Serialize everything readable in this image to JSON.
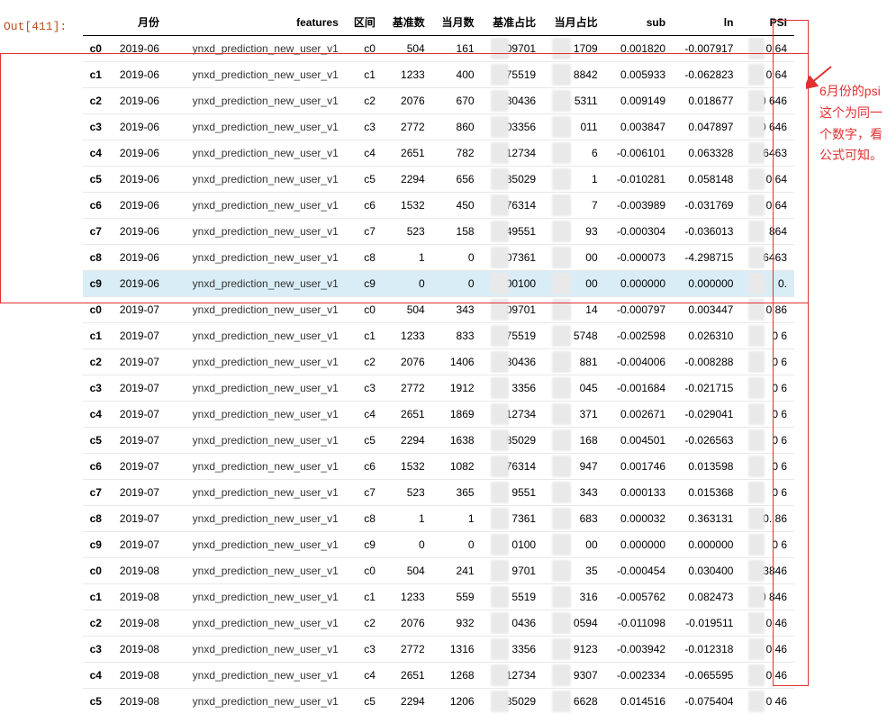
{
  "out_label": "Out[411]:",
  "headers": {
    "idx": "",
    "month": "月份",
    "features": "features",
    "bucket": "区间",
    "base_cnt": "基准数",
    "cur_cnt": "当月数",
    "base_pct": "基准占比",
    "cur_pct": "当月占比",
    "sub": "sub",
    "ln": "ln",
    "psi": "PSI"
  },
  "annotation": "6月份的psi这个为同一个数字，看公式可知。",
  "rows": [
    {
      "idx": "c0",
      "month": "2019-06",
      "feat": "ynxd_prediction_new_user_v1",
      "bucket": "c0",
      "base": "504",
      "cur": "161",
      "basep": "09701",
      "curp": "1709",
      "sub": "0.001820",
      "ln": "-0.007917",
      "psi": "0  64 "
    },
    {
      "idx": "c1",
      "month": "2019-06",
      "feat": "ynxd_prediction_new_user_v1",
      "bucket": "c1",
      "base": "1233",
      "cur": "400",
      "basep": "75519",
      "curp": "8842",
      "sub": "0.005933",
      "ln": "-0.062823",
      "psi": "0  64 "
    },
    {
      "idx": "c2",
      "month": "2019-06",
      "feat": "ynxd_prediction_new_user_v1",
      "bucket": "c2",
      "base": "2076",
      "cur": "670",
      "basep": "30436",
      "curp": "5311",
      "sub": "0.009149",
      "ln": "0.018677",
      "psi": "0  646"
    },
    {
      "idx": "c3",
      "month": "2019-06",
      "feat": "ynxd_prediction_new_user_v1",
      "bucket": "c3",
      "base": "2772",
      "cur": "860",
      "basep": "03356",
      "curp": "011",
      "sub": "0.003847",
      "ln": "0.047897",
      "psi": "0  646"
    },
    {
      "idx": "c4",
      "month": "2019-06",
      "feat": "ynxd_prediction_new_user_v1",
      "bucket": "c4",
      "base": "2651",
      "cur": "782",
      "basep": "12734",
      "curp": "6",
      "sub": "-0.006101",
      "ln": "0.063328",
      "psi": "0  6463"
    },
    {
      "idx": "c5",
      "month": "2019-06",
      "feat": "ynxd_prediction_new_user_v1",
      "bucket": "c5",
      "base": "2294",
      "cur": "656",
      "basep": "85029",
      "curp": "1",
      "sub": "-0.010281",
      "ln": "0.058148",
      "psi": "0  64"
    },
    {
      "idx": "c6",
      "month": "2019-06",
      "feat": "ynxd_prediction_new_user_v1",
      "bucket": "c6",
      "base": "1532",
      "cur": "450",
      "basep": "76314",
      "curp": "7",
      "sub": "-0.003989",
      "ln": "-0.031769",
      "psi": "0  64"
    },
    {
      "idx": "c7",
      "month": "2019-06",
      "feat": "ynxd_prediction_new_user_v1",
      "bucket": "c7",
      "base": "523",
      "cur": "158",
      "basep": "49551",
      "curp": "93",
      "sub": "-0.000304",
      "ln": "-0.036013",
      "psi": "864"
    },
    {
      "idx": "c8",
      "month": "2019-06",
      "feat": "ynxd_prediction_new_user_v1",
      "bucket": "c8",
      "base": "1",
      "cur": "0",
      "basep": "07361",
      "curp": "00",
      "sub": "-0.000073",
      "ln": "-4.298715",
      "psi": "0  6463"
    },
    {
      "idx": "c9",
      "month": "2019-06",
      "feat": "ynxd_prediction_new_user_v1",
      "bucket": "c9",
      "base": "0",
      "cur": "0",
      "basep": "00100",
      "curp": "00",
      "sub": "0.000000",
      "ln": "0.000000",
      "psi": "0.   ",
      "hl": true
    },
    {
      "idx": "c0",
      "month": "2019-07",
      "feat": "ynxd_prediction_new_user_v1",
      "bucket": "c0",
      "base": "504",
      "cur": "343",
      "basep": "09701",
      "curp": "14",
      "sub": "-0.000797",
      "ln": "0.003447",
      "psi": "0  86"
    },
    {
      "idx": "c1",
      "month": "2019-07",
      "feat": "ynxd_prediction_new_user_v1",
      "bucket": "c1",
      "base": "1233",
      "cur": "833",
      "basep": "75519",
      "curp": "5748",
      "sub": "-0.002598",
      "ln": "0.026310",
      "psi": "0   6"
    },
    {
      "idx": "c2",
      "month": "2019-07",
      "feat": "ynxd_prediction_new_user_v1",
      "bucket": "c2",
      "base": "2076",
      "cur": "1406",
      "basep": "30436",
      "curp": "881",
      "sub": "-0.004006",
      "ln": "-0.008288",
      "psi": "0   6"
    },
    {
      "idx": "c3",
      "month": "2019-07",
      "feat": "ynxd_prediction_new_user_v1",
      "bucket": "c3",
      "base": "2772",
      "cur": "1912",
      "basep": "3356",
      "curp": "045",
      "sub": "-0.001684",
      "ln": "-0.021715",
      "psi": "0   6"
    },
    {
      "idx": "c4",
      "month": "2019-07",
      "feat": "ynxd_prediction_new_user_v1",
      "bucket": "c4",
      "base": "2651",
      "cur": "1869",
      "basep": "12734",
      "curp": "371",
      "sub": "0.002671",
      "ln": "-0.029041",
      "psi": "0   6"
    },
    {
      "idx": "c5",
      "month": "2019-07",
      "feat": "ynxd_prediction_new_user_v1",
      "bucket": "c5",
      "base": "2294",
      "cur": "1638",
      "basep": "85029",
      "curp": "168",
      "sub": "0.004501",
      "ln": "-0.026563",
      "psi": "0   6"
    },
    {
      "idx": "c6",
      "month": "2019-07",
      "feat": "ynxd_prediction_new_user_v1",
      "bucket": "c6",
      "base": "1532",
      "cur": "1082",
      "basep": "76314",
      "curp": "947",
      "sub": "0.001746",
      "ln": "0.013598",
      "psi": "0   6"
    },
    {
      "idx": "c7",
      "month": "2019-07",
      "feat": "ynxd_prediction_new_user_v1",
      "bucket": "c7",
      "base": "523",
      "cur": "365",
      "basep": "9551",
      "curp": "343",
      "sub": "0.000133",
      "ln": "0.015368",
      "psi": "0   6"
    },
    {
      "idx": "c8",
      "month": "2019-07",
      "feat": "ynxd_prediction_new_user_v1",
      "bucket": "c8",
      "base": "1",
      "cur": "1",
      "basep": "7361",
      "curp": "683",
      "sub": "0.000032",
      "ln": "0.363131",
      "psi": "0.  86"
    },
    {
      "idx": "c9",
      "month": "2019-07",
      "feat": "ynxd_prediction_new_user_v1",
      "bucket": "c9",
      "base": "0",
      "cur": "0",
      "basep": "0100",
      "curp": "00",
      "sub": "0.000000",
      "ln": "0.000000",
      "psi": "0    6"
    },
    {
      "idx": "c0",
      "month": "2019-08",
      "feat": "ynxd_prediction_new_user_v1",
      "bucket": "c0",
      "base": "504",
      "cur": "241",
      "basep": "9701",
      "curp": "35",
      "sub": "-0.000454",
      "ln": "0.030400",
      "psi": "0. 3846"
    },
    {
      "idx": "c1",
      "month": "2019-08",
      "feat": "ynxd_prediction_new_user_v1",
      "bucket": "c1",
      "base": "1233",
      "cur": "559",
      "basep": "5519",
      "curp": "316",
      "sub": "-0.005762",
      "ln": "0.082473",
      "psi": "0  846"
    },
    {
      "idx": "c2",
      "month": "2019-08",
      "feat": "ynxd_prediction_new_user_v1",
      "bucket": "c2",
      "base": "2076",
      "cur": "932",
      "basep": "0436",
      "curp": "0594",
      "sub": "-0.011098",
      "ln": "-0.019511",
      "psi": "0   46"
    },
    {
      "idx": "c3",
      "month": "2019-08",
      "feat": "ynxd_prediction_new_user_v1",
      "bucket": "c3",
      "base": "2772",
      "cur": "1316",
      "basep": "3356",
      "curp": "9123",
      "sub": "-0.003942",
      "ln": "-0.012318",
      "psi": "0   46"
    },
    {
      "idx": "c4",
      "month": "2019-08",
      "feat": "ynxd_prediction_new_user_v1",
      "bucket": "c4",
      "base": "2651",
      "cur": "1268",
      "basep": "12734",
      "curp": "9307",
      "sub": "-0.002334",
      "ln": "-0.065595",
      "psi": "0   46"
    },
    {
      "idx": "c5",
      "month": "2019-08",
      "feat": "ynxd_prediction_new_user_v1",
      "bucket": "c5",
      "base": "2294",
      "cur": "1206",
      "basep": "85029",
      "curp": "6628",
      "sub": "0.014516",
      "ln": "-0.075404",
      "psi": "0   46"
    }
  ],
  "colors": {
    "red": "#e03030",
    "out_label": "#bb4b22",
    "highlight_row": "#d9edf7",
    "blur_block": "#e9e9e9",
    "row_border": "#e8e8e8"
  }
}
